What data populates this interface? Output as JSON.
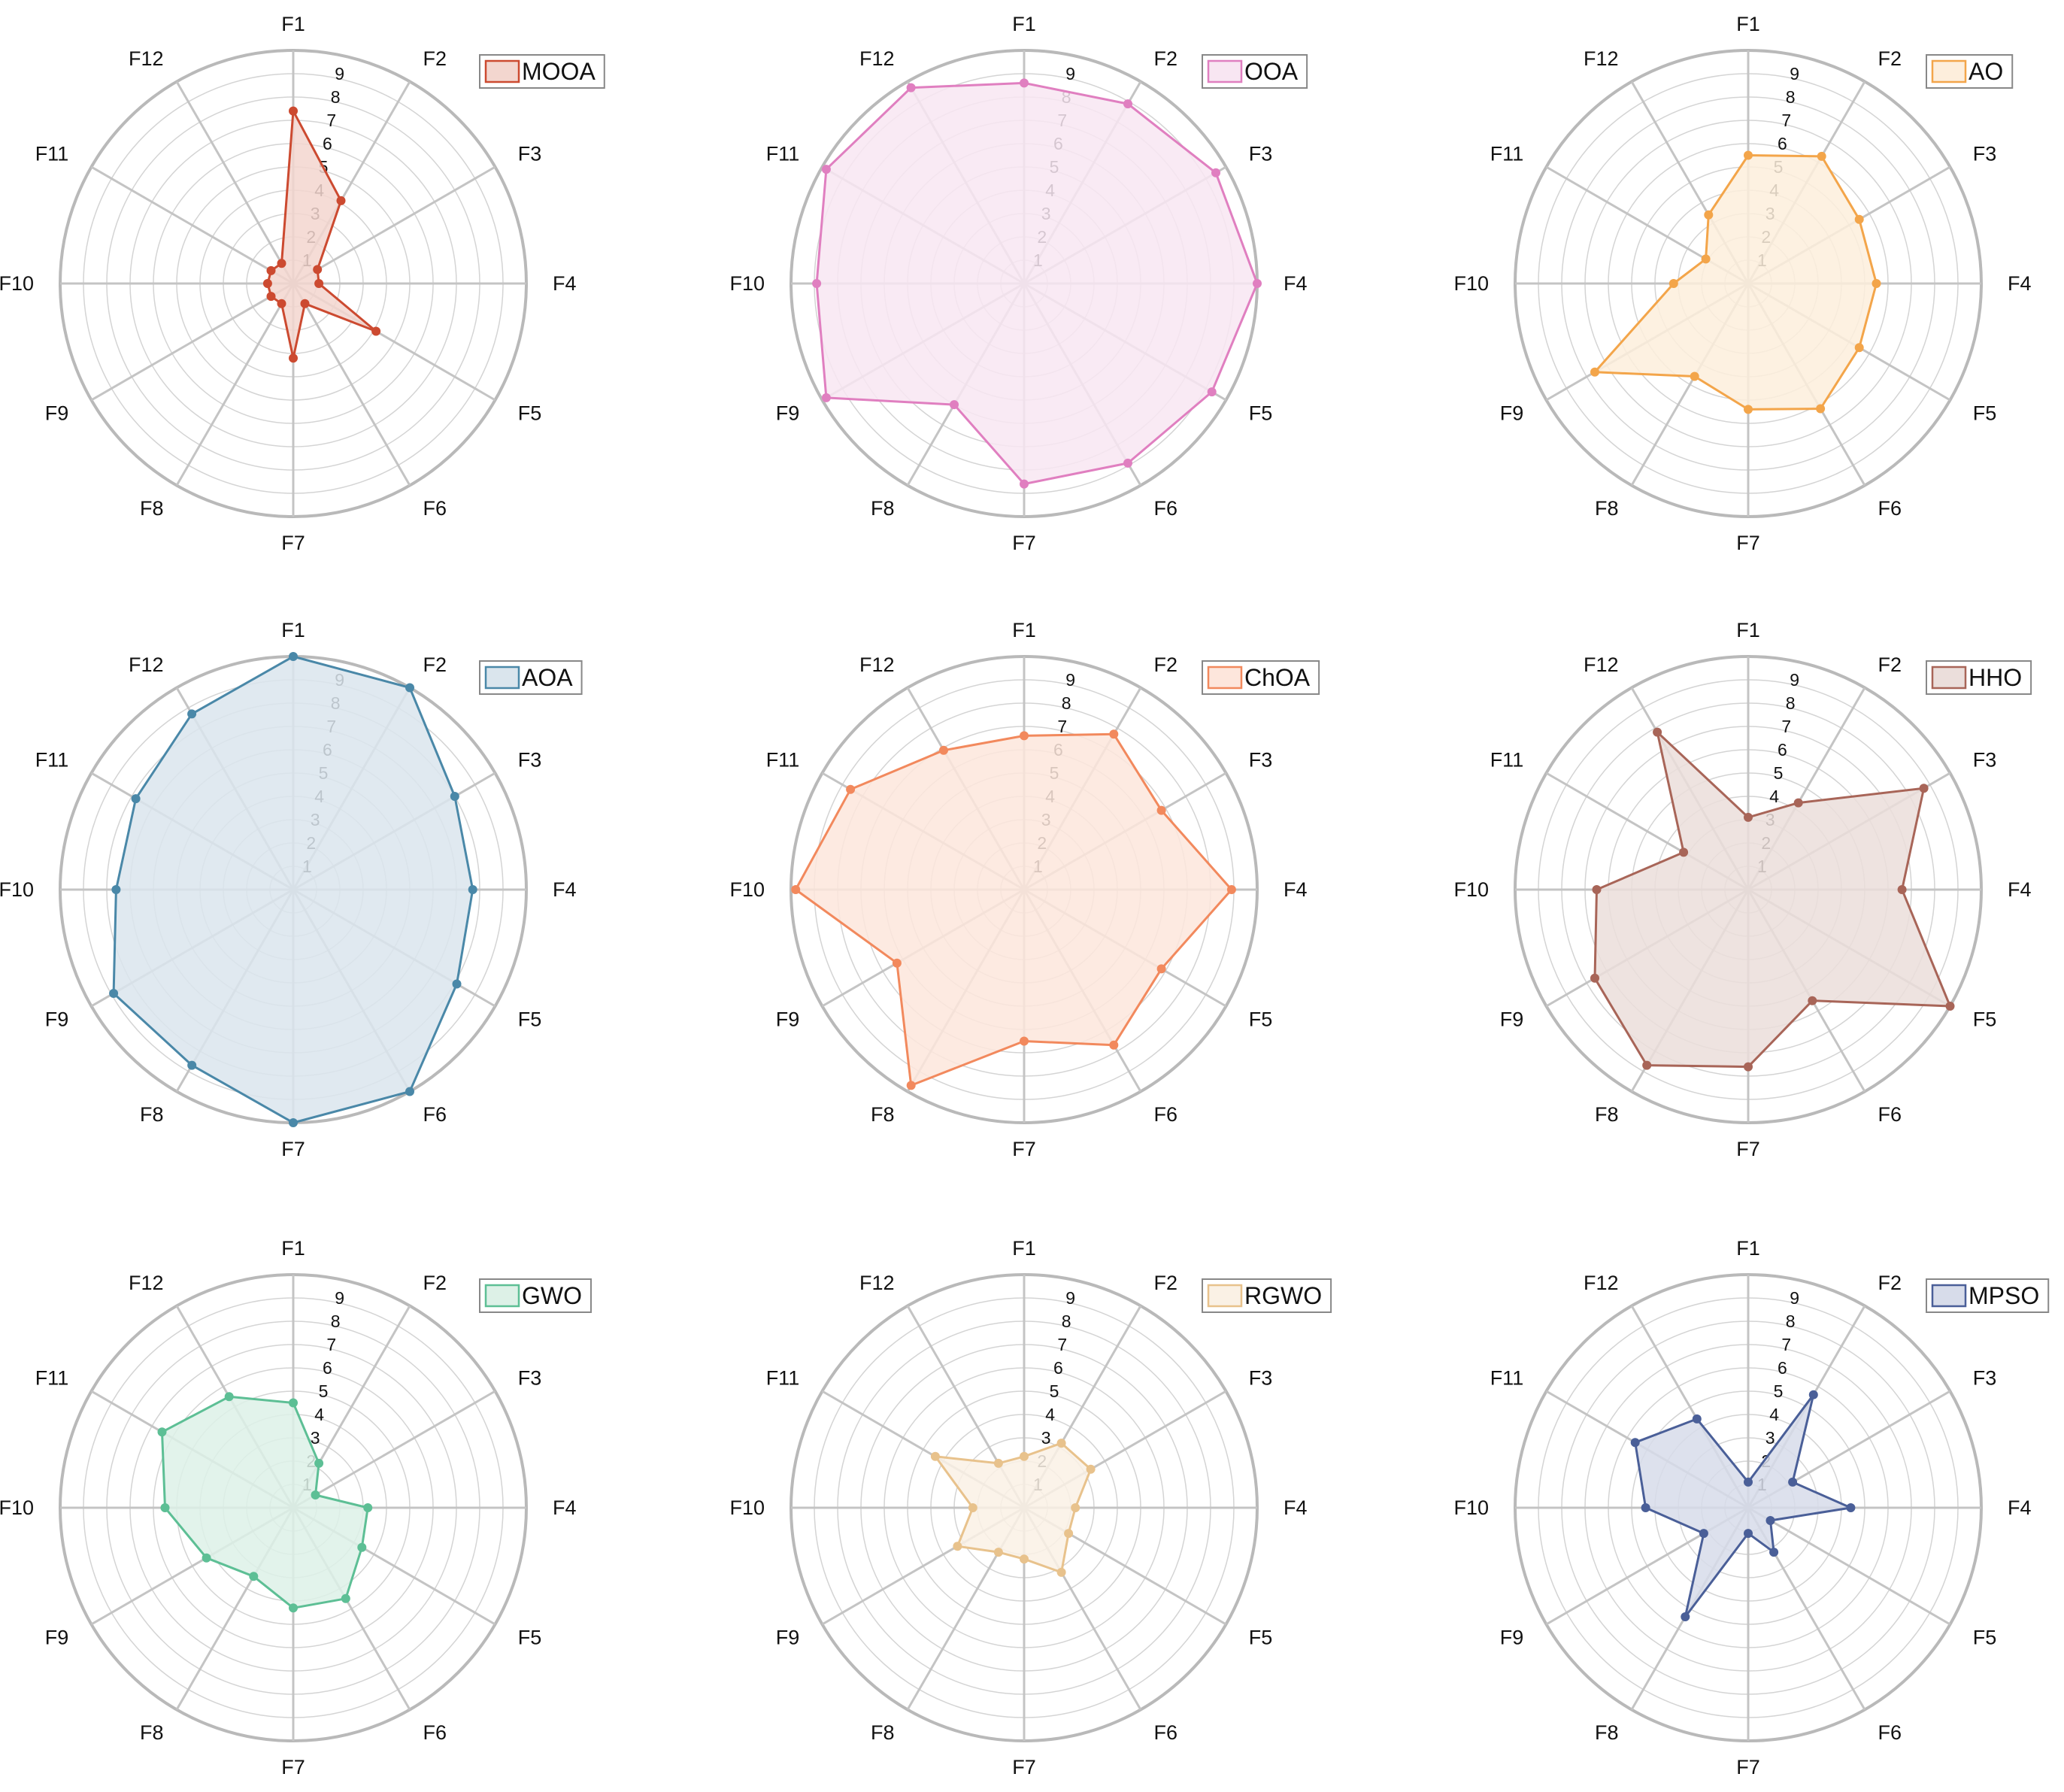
{
  "chart_data": [
    {
      "type": "radar",
      "name": "MOOA",
      "color": "#cc4a30",
      "fill": "#f3d6cf",
      "categories": [
        "F1",
        "F2",
        "F3",
        "F4",
        "F5",
        "F6",
        "F7",
        "F8",
        "F9",
        "F10",
        "F11",
        "F12"
      ],
      "values": [
        7.4,
        4.1,
        1.2,
        1.1,
        4.1,
        1.0,
        3.2,
        1.0,
        1.1,
        1.1,
        1.1,
        1.0
      ],
      "rlim": [
        0,
        10
      ],
      "ticks": [
        "1",
        "2",
        "3",
        "4",
        "5",
        "6",
        "7",
        "8",
        "9"
      ]
    },
    {
      "type": "radar",
      "name": "OOA",
      "color": "#e07fc0",
      "fill": "#f8e6f2",
      "categories": [
        "F1",
        "F2",
        "F3",
        "F4",
        "F5",
        "F6",
        "F7",
        "F8",
        "F9",
        "F10",
        "F11",
        "F12"
      ],
      "values": [
        8.6,
        8.9,
        9.5,
        10.0,
        9.3,
        8.9,
        8.6,
        6.0,
        9.8,
        8.9,
        9.8,
        9.7
      ],
      "rlim": [
        0,
        10
      ],
      "ticks": [
        "1",
        "2",
        "3",
        "4",
        "5",
        "6",
        "7",
        "8",
        "9"
      ]
    },
    {
      "type": "radar",
      "name": "AO",
      "color": "#f3a54a",
      "fill": "#fdeedc",
      "categories": [
        "F1",
        "F2",
        "F3",
        "F4",
        "F5",
        "F6",
        "F7",
        "F8",
        "F9",
        "F10",
        "F11",
        "F12"
      ],
      "values": [
        5.5,
        6.3,
        5.5,
        5.5,
        5.5,
        6.2,
        5.4,
        4.6,
        7.6,
        3.2,
        2.1,
        3.4
      ],
      "rlim": [
        0,
        10
      ],
      "ticks": [
        "1",
        "2",
        "3",
        "4",
        "5",
        "6",
        "7",
        "8",
        "9"
      ]
    },
    {
      "type": "radar",
      "name": "AOA",
      "color": "#4a88a8",
      "fill": "#dae5ed",
      "categories": [
        "F1",
        "F2",
        "F3",
        "F4",
        "F5",
        "F6",
        "F7",
        "F8",
        "F9",
        "F10",
        "F11",
        "F12"
      ],
      "values": [
        10.0,
        10.0,
        8.0,
        7.7,
        8.1,
        10.0,
        10.0,
        8.7,
        8.9,
        7.6,
        7.8,
        8.7
      ],
      "rlim": [
        0,
        10
      ],
      "ticks": [
        "1",
        "2",
        "3",
        "4",
        "5",
        "6",
        "7",
        "8",
        "9"
      ]
    },
    {
      "type": "radar",
      "name": "ChOA",
      "color": "#f2895d",
      "fill": "#fde6dc",
      "categories": [
        "F1",
        "F2",
        "F3",
        "F4",
        "F5",
        "F6",
        "F7",
        "F8",
        "F9",
        "F10",
        "F11",
        "F12"
      ],
      "values": [
        6.6,
        7.7,
        6.8,
        8.9,
        6.8,
        7.7,
        6.5,
        9.7,
        6.3,
        9.8,
        8.6,
        6.9
      ],
      "rlim": [
        0,
        10
      ],
      "ticks": [
        "1",
        "2",
        "3",
        "4",
        "5",
        "6",
        "7",
        "8",
        "9"
      ]
    },
    {
      "type": "radar",
      "name": "HHO",
      "color": "#a86558",
      "fill": "#ebdedb",
      "categories": [
        "F1",
        "F2",
        "F3",
        "F4",
        "F5",
        "F6",
        "F7",
        "F8",
        "F9",
        "F10",
        "F11",
        "F12"
      ],
      "values": [
        3.1,
        4.3,
        8.7,
        6.6,
        10.0,
        5.5,
        7.6,
        8.7,
        7.6,
        6.5,
        3.2,
        7.8
      ],
      "rlim": [
        0,
        10
      ],
      "ticks": [
        "1",
        "2",
        "3",
        "4",
        "5",
        "6",
        "7",
        "8",
        "9"
      ]
    },
    {
      "type": "radar",
      "name": "GWO",
      "color": "#5dbf95",
      "fill": "#ddf1e7",
      "categories": [
        "F1",
        "F2",
        "F3",
        "F4",
        "F5",
        "F6",
        "F7",
        "F8",
        "F9",
        "F10",
        "F11",
        "F12"
      ],
      "values": [
        4.5,
        2.2,
        1.1,
        3.2,
        3.4,
        4.5,
        4.3,
        3.4,
        4.3,
        5.5,
        6.5,
        5.5
      ],
      "rlim": [
        0,
        10
      ],
      "ticks": [
        "1",
        "2",
        "3",
        "4",
        "5",
        "6",
        "7",
        "8",
        "9"
      ]
    },
    {
      "type": "radar",
      "name": "RGWO",
      "color": "#e8c28c",
      "fill": "#faf1e5",
      "categories": [
        "F1",
        "F2",
        "F3",
        "F4",
        "F5",
        "F6",
        "F7",
        "F8",
        "F9",
        "F10",
        "F11",
        "F12"
      ],
      "values": [
        2.2,
        3.2,
        3.3,
        2.2,
        2.2,
        3.2,
        2.2,
        2.2,
        3.3,
        2.2,
        4.4,
        2.2
      ],
      "rlim": [
        0,
        10
      ],
      "ticks": [
        "1",
        "2",
        "3",
        "4",
        "5",
        "6",
        "7",
        "8",
        "9"
      ]
    },
    {
      "type": "radar",
      "name": "MPSO",
      "color": "#4a5f98",
      "fill": "#d7dcea",
      "categories": [
        "F1",
        "F2",
        "F3",
        "F4",
        "F5",
        "F6",
        "F7",
        "F8",
        "F9",
        "F10",
        "F11",
        "F12"
      ],
      "values": [
        1.1,
        5.6,
        2.2,
        4.4,
        1.1,
        2.2,
        1.1,
        5.4,
        2.2,
        4.4,
        5.6,
        4.4
      ],
      "rlim": [
        0,
        10
      ],
      "ticks": [
        "1",
        "2",
        "3",
        "4",
        "5",
        "6",
        "7",
        "8",
        "9"
      ]
    }
  ]
}
